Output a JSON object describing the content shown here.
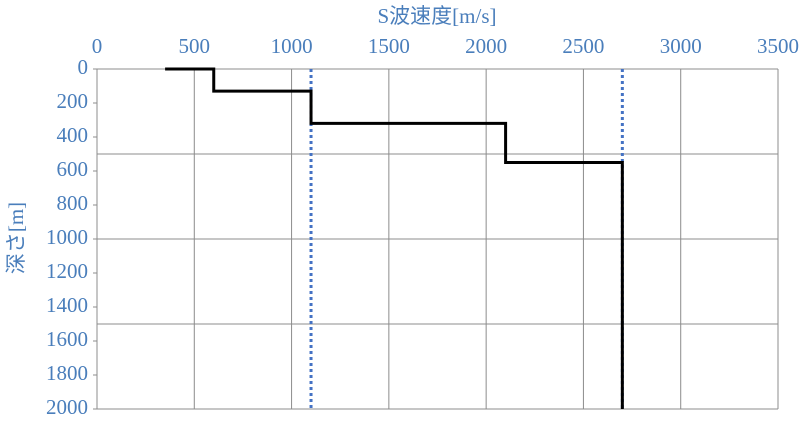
{
  "chart_data": {
    "type": "line",
    "x_label": "S波速度[m/s]",
    "y_label": "深さ[m]",
    "xlim": [
      0,
      3500
    ],
    "xticks": [
      0,
      500,
      1000,
      1500,
      2000,
      2500,
      3000,
      3500
    ],
    "ylim": [
      0,
      2000
    ],
    "yticks": [
      0,
      200,
      400,
      600,
      800,
      1000,
      1200,
      1400,
      1600,
      1800,
      2000
    ],
    "y_inverted": true,
    "x_axis_position": "top",
    "xgrid": true,
    "ygrid": [
      500,
      1000,
      1500,
      2000
    ],
    "label_color": "#4a7ebb",
    "series": [
      {
        "color": "#000000",
        "dash": "solid",
        "x": [
          350,
          600,
          600,
          1100,
          1100,
          2100,
          2100,
          2700,
          2700
        ],
        "values": [
          0,
          0,
          130,
          130,
          320,
          320,
          550,
          550,
          2000
        ]
      },
      {
        "color": "#4472c4",
        "dash": "dotted",
        "x": [
          1100,
          1100
        ],
        "values": [
          0,
          2000
        ]
      },
      {
        "color": "#4472c4",
        "dash": "dotted",
        "x": [
          2700,
          2700
        ],
        "values": [
          0,
          2000
        ]
      }
    ]
  }
}
